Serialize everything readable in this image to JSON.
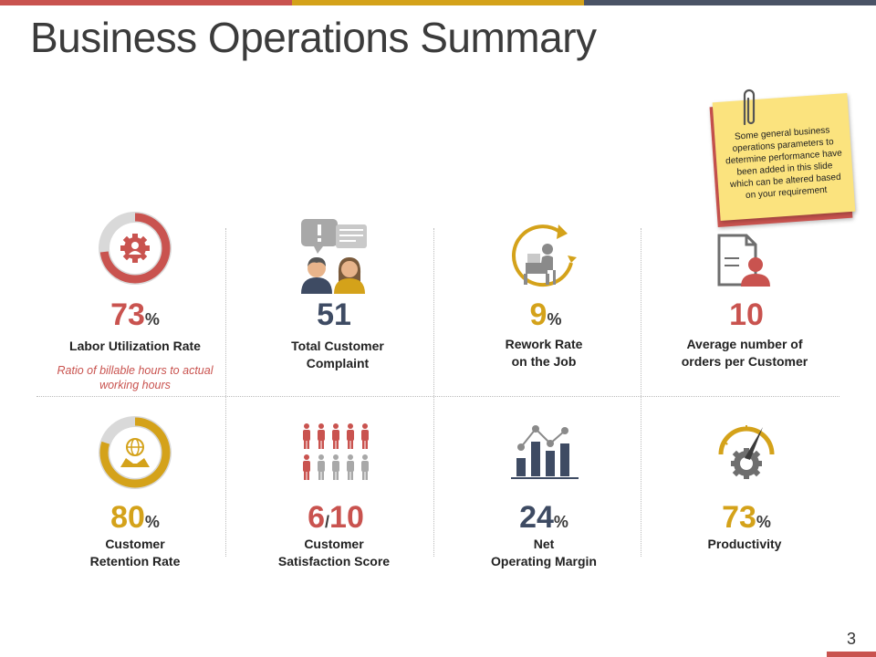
{
  "title": "Business Operations Summary",
  "note": "Some general business operations parameters to determine performance have been added in this slide which can be altered based on your requirement",
  "page_number": "3",
  "colors": {
    "red": "#c9534f",
    "gold": "#d4a21a",
    "navy": "#3e4b63",
    "gray": "#d9d9d9"
  },
  "metrics": [
    {
      "value": "73",
      "unit": "%",
      "label": "Labor Utilization Rate",
      "sublabel": "Ratio of billable hours to actual working hours",
      "icon": "gear-user-donut-icon",
      "percent": 73
    },
    {
      "value": "51",
      "label_line1": "Total Customer",
      "label_line2": "Complaint",
      "icon": "customer-complaint-icon"
    },
    {
      "value": "9",
      "unit": "%",
      "label_line1": "Rework Rate",
      "label_line2": "on the Job",
      "icon": "rework-cycle-icon"
    },
    {
      "value": "10",
      "label_line1": "Average number of",
      "label_line2": "orders per Customer",
      "icon": "customer-document-icon"
    },
    {
      "value": "80",
      "unit": "%",
      "label_line1": "Customer",
      "label_line2": "Retention Rate",
      "icon": "globe-handshake-donut-icon",
      "percent": 80
    },
    {
      "value_a": "6",
      "value_sep": "/",
      "value_b": "10",
      "label_line1": "Customer",
      "label_line2": "Satisfaction Score",
      "icon": "people-rating-icon",
      "score": 6
    },
    {
      "value": "24",
      "unit": "%",
      "label_line1": "Net",
      "label_line2": "Operating Margin",
      "icon": "bar-line-chart-icon"
    },
    {
      "value": "73",
      "unit": "%",
      "label": "Productivity",
      "icon": "speedometer-gear-icon"
    }
  ]
}
